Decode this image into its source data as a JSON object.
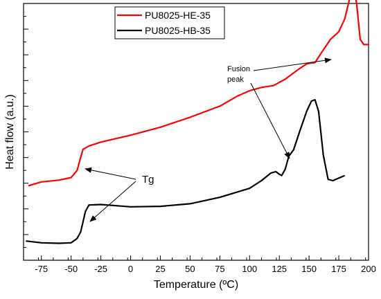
{
  "chart_data": {
    "type": "line",
    "title": "",
    "xlabel": "Temperature (ºC)",
    "ylabel": "Heat flow (a.u.)",
    "xlim": [
      -90,
      200
    ],
    "ylim": [
      0,
      10
    ],
    "x_ticks": [
      -75,
      -50,
      -25,
      0,
      25,
      50,
      75,
      100,
      125,
      150,
      175,
      200
    ],
    "y_ticks_labeled": false,
    "grid": false,
    "legend_position": "top-center",
    "series": [
      {
        "name": "PU8025-HE-35",
        "color": "#ff0000",
        "points": [
          [
            -86,
            2.9
          ],
          [
            -75,
            3.05
          ],
          [
            -60,
            3.12
          ],
          [
            -50,
            3.22
          ],
          [
            -45,
            3.5
          ],
          [
            -42,
            4.0
          ],
          [
            -40,
            4.32
          ],
          [
            -35,
            4.45
          ],
          [
            -25,
            4.6
          ],
          [
            0,
            4.87
          ],
          [
            25,
            5.18
          ],
          [
            50,
            5.57
          ],
          [
            75,
            6.0
          ],
          [
            90,
            6.4
          ],
          [
            100,
            6.6
          ],
          [
            110,
            6.73
          ],
          [
            120,
            6.8
          ],
          [
            130,
            7.05
          ],
          [
            140,
            7.4
          ],
          [
            148,
            7.65
          ],
          [
            155,
            7.7
          ],
          [
            160,
            8.05
          ],
          [
            168,
            8.6
          ],
          [
            175,
            8.9
          ],
          [
            180,
            9.4
          ],
          [
            185,
            10.35
          ],
          [
            188,
            10.5
          ],
          [
            190,
            10.0
          ],
          [
            193,
            8.6
          ],
          [
            196,
            8.4
          ],
          [
            200,
            8.4
          ]
        ]
      },
      {
        "name": "PU8025-HB-35",
        "color": "#000000",
        "points": [
          [
            -88,
            0.75
          ],
          [
            -75,
            0.68
          ],
          [
            -60,
            0.66
          ],
          [
            -50,
            0.68
          ],
          [
            -45,
            0.85
          ],
          [
            -42,
            1.1
          ],
          [
            -40,
            1.5
          ],
          [
            -38,
            1.9
          ],
          [
            -35,
            2.15
          ],
          [
            -25,
            2.17
          ],
          [
            0,
            2.08
          ],
          [
            25,
            2.1
          ],
          [
            50,
            2.2
          ],
          [
            75,
            2.45
          ],
          [
            100,
            2.8
          ],
          [
            110,
            3.1
          ],
          [
            118,
            3.4
          ],
          [
            122,
            3.45
          ],
          [
            125,
            3.35
          ],
          [
            127,
            3.3
          ],
          [
            130,
            3.55
          ],
          [
            133,
            4.05
          ],
          [
            137,
            4.3
          ],
          [
            142,
            5.0
          ],
          [
            148,
            5.8
          ],
          [
            152,
            6.2
          ],
          [
            155,
            6.25
          ],
          [
            158,
            5.8
          ],
          [
            162,
            4.1
          ],
          [
            166,
            3.15
          ],
          [
            170,
            3.1
          ],
          [
            175,
            3.2
          ],
          [
            180,
            3.3
          ]
        ]
      }
    ],
    "annotations": [
      {
        "text": "Tg"
      },
      {
        "text_lines": [
          "Fusion",
          "peak"
        ]
      }
    ]
  }
}
